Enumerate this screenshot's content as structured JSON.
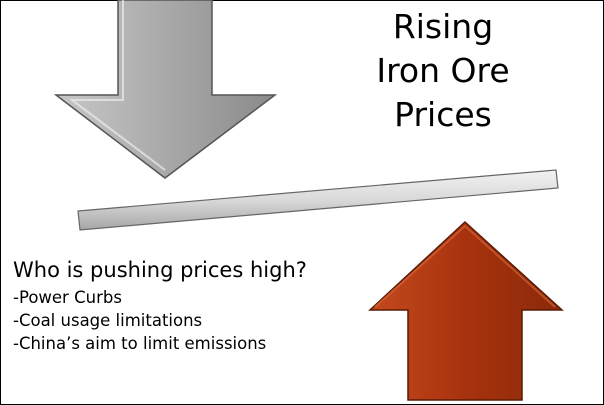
{
  "slide": {
    "title_lines": [
      "Rising",
      "Iron Ore",
      "Prices"
    ],
    "question": "Who is pushing prices high?",
    "bullets": [
      "-Power Curbs",
      "-Coal usage limitations",
      "-China’s aim to limit emissions"
    ]
  }
}
